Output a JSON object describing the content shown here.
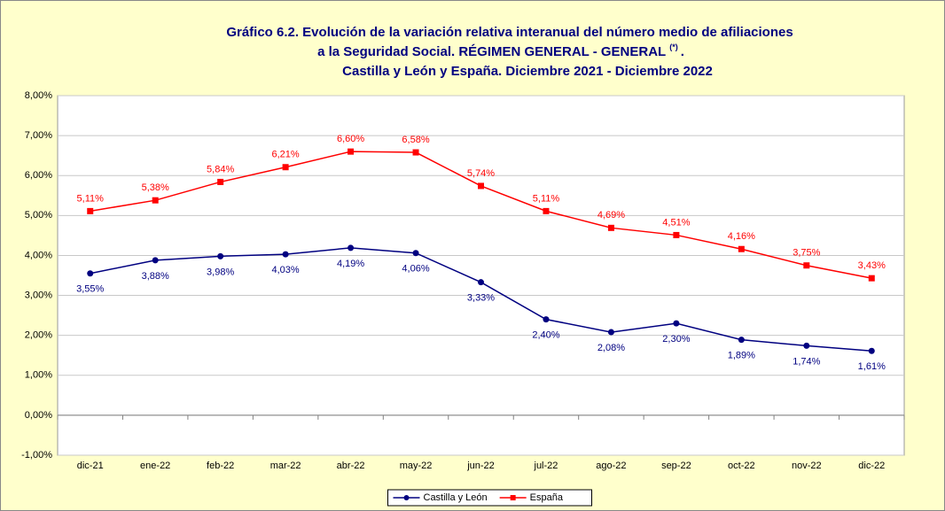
{
  "chart_data": {
    "type": "line",
    "title": [
      "Gráfico 6.2. Evolución de la variación relativa interanual del número medio de afiliaciones",
      "a la Seguridad Social. RÉGIMEN GENERAL - GENERAL",
      "Castilla y León y España. Diciembre 2021 - Diciembre 2022"
    ],
    "title_superscript": "(*)",
    "title_suffix": ".",
    "categories": [
      "dic-21",
      "ene-22",
      "feb-22",
      "mar-22",
      "abr-22",
      "may-22",
      "jun-22",
      "jul-22",
      "ago-22",
      "sep-22",
      "oct-22",
      "nov-22",
      "dic-22"
    ],
    "series": [
      {
        "name": "Castilla y León",
        "color": "#000080",
        "marker": "circle",
        "values": [
          3.55,
          3.88,
          3.98,
          4.03,
          4.19,
          4.06,
          3.33,
          2.4,
          2.08,
          2.3,
          1.89,
          1.74,
          1.61
        ],
        "value_labels": [
          "3,55%",
          "3,88%",
          "3,98%",
          "4,03%",
          "4,19%",
          "4,06%",
          "3,33%",
          "2,40%",
          "2,08%",
          "2,30%",
          "1,89%",
          "1,74%",
          "1,61%"
        ]
      },
      {
        "name": "España",
        "color": "#ff0000",
        "marker": "square",
        "values": [
          5.11,
          5.38,
          5.84,
          6.21,
          6.6,
          6.58,
          5.74,
          5.11,
          4.69,
          4.51,
          4.16,
          3.75,
          3.43
        ],
        "value_labels": [
          "5,11%",
          "5,38%",
          "5,84%",
          "6,21%",
          "6,60%",
          "6,58%",
          "5,74%",
          "5,11%",
          "4,69%",
          "4,51%",
          "4,16%",
          "3,75%",
          "3,43%"
        ]
      }
    ],
    "ylim": [
      -1,
      8
    ],
    "yticks": [
      {
        "value": -1,
        "label": "-1,00%"
      },
      {
        "value": 0,
        "label": "0,00%"
      },
      {
        "value": 1,
        "label": "1,00%"
      },
      {
        "value": 2,
        "label": "2,00%"
      },
      {
        "value": 3,
        "label": "3,00%"
      },
      {
        "value": 4,
        "label": "4,00%"
      },
      {
        "value": 5,
        "label": "5,00%"
      },
      {
        "value": 6,
        "label": "6,00%"
      },
      {
        "value": 7,
        "label": "7,00%"
      },
      {
        "value": 8,
        "label": "8,00%"
      }
    ],
    "grid": true,
    "legend": "bottom"
  }
}
